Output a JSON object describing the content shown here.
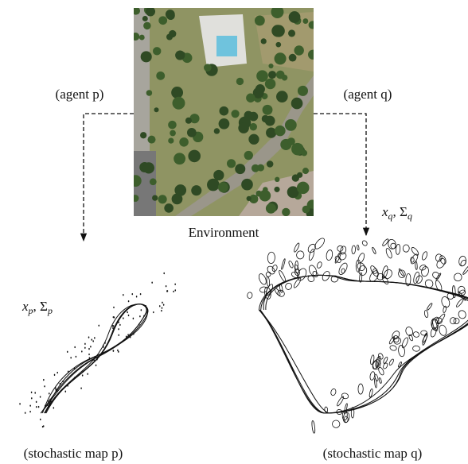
{
  "environment": {
    "label": "Environment"
  },
  "agents": [
    {
      "label": "(agent p)",
      "estimate": {
        "state": "x",
        "covariance": "Σ",
        "separator": ", ",
        "subscript": "p"
      },
      "map_label": "(stochastic map p)"
    },
    {
      "label": "(agent q)",
      "estimate": {
        "state": "x",
        "covariance": "Σ",
        "separator": ", ",
        "subscript": "q"
      },
      "map_label": "(stochastic map q)"
    }
  ]
}
